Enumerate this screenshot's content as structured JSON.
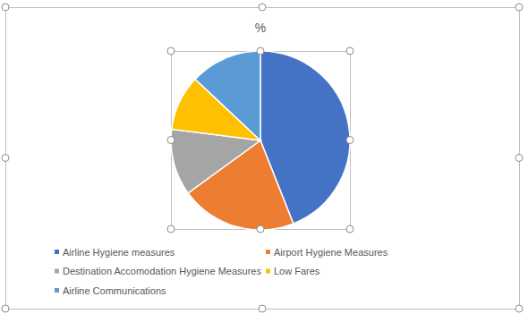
{
  "chart_data": {
    "type": "pie",
    "title": "%",
    "categories": [
      "Airline Hygiene measures",
      "Airport Hygiene Measures",
      "Destination Accomodation Hygiene Measures",
      "Low Fares",
      "Airline Communications"
    ],
    "values": [
      44,
      21,
      12,
      10,
      13
    ],
    "colors": [
      "#4472c4",
      "#ed7d31",
      "#a5a5a5",
      "#ffc000",
      "#5b9bd5"
    ],
    "legend": "bottom"
  }
}
